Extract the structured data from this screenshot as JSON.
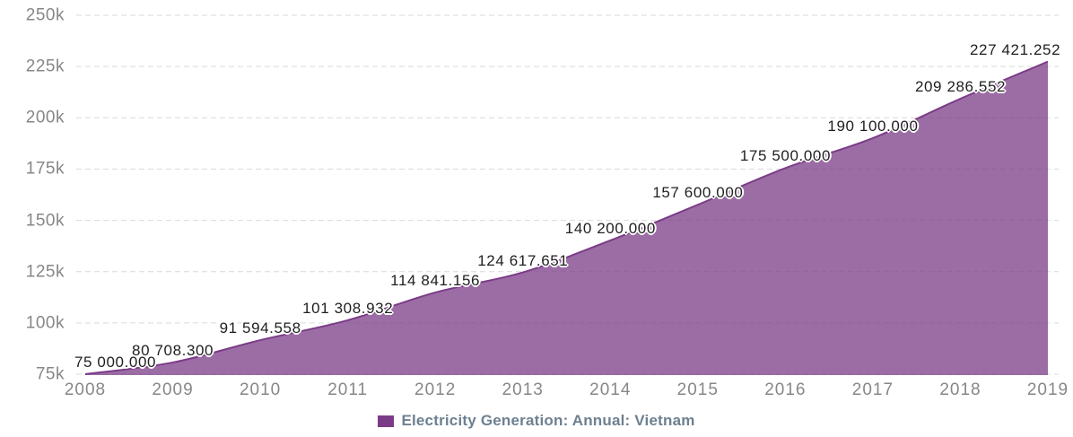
{
  "chart_data": {
    "type": "area",
    "title": "",
    "x": [
      "2008",
      "2009",
      "2010",
      "2011",
      "2012",
      "2013",
      "2014",
      "2015",
      "2016",
      "2017",
      "2018",
      "2019"
    ],
    "series": [
      {
        "name": "Electricity Generation: Annual: Vietnam",
        "color": "#7b3c87",
        "values": [
          75000.0,
          80708.3,
          91594.558,
          101308.932,
          114841.156,
          124617.651,
          140200.0,
          157600.0,
          175500.0,
          190100.0,
          209286.552,
          227421.252
        ]
      }
    ],
    "point_labels": [
      "75 000.000",
      "80 708.300",
      "91 594.558",
      "101 308.932",
      "114 841.156",
      "124 617.651",
      "140 200.000",
      "157 600.000",
      "175 500.000",
      "190 100.000",
      "209 286.552",
      "227 421.252"
    ],
    "y_ticks": [
      "75k",
      "100k",
      "125k",
      "150k",
      "175k",
      "200k",
      "225k",
      "250k"
    ],
    "ylim": [
      75000,
      250000
    ],
    "xlabel": "",
    "ylabel": "",
    "grid": "horizontal-dashed",
    "legend_position": "bottom-center",
    "fill_opacity": 0.75
  },
  "colors": {
    "series": "#7b3c87",
    "grid": "#d9d9d9",
    "axis_text": "#878787",
    "label_text": "#1f1f1f",
    "legend_text": "#6d8090",
    "background": "#ffffff"
  },
  "legend": {
    "label": "Electricity Generation: Annual: Vietnam"
  }
}
